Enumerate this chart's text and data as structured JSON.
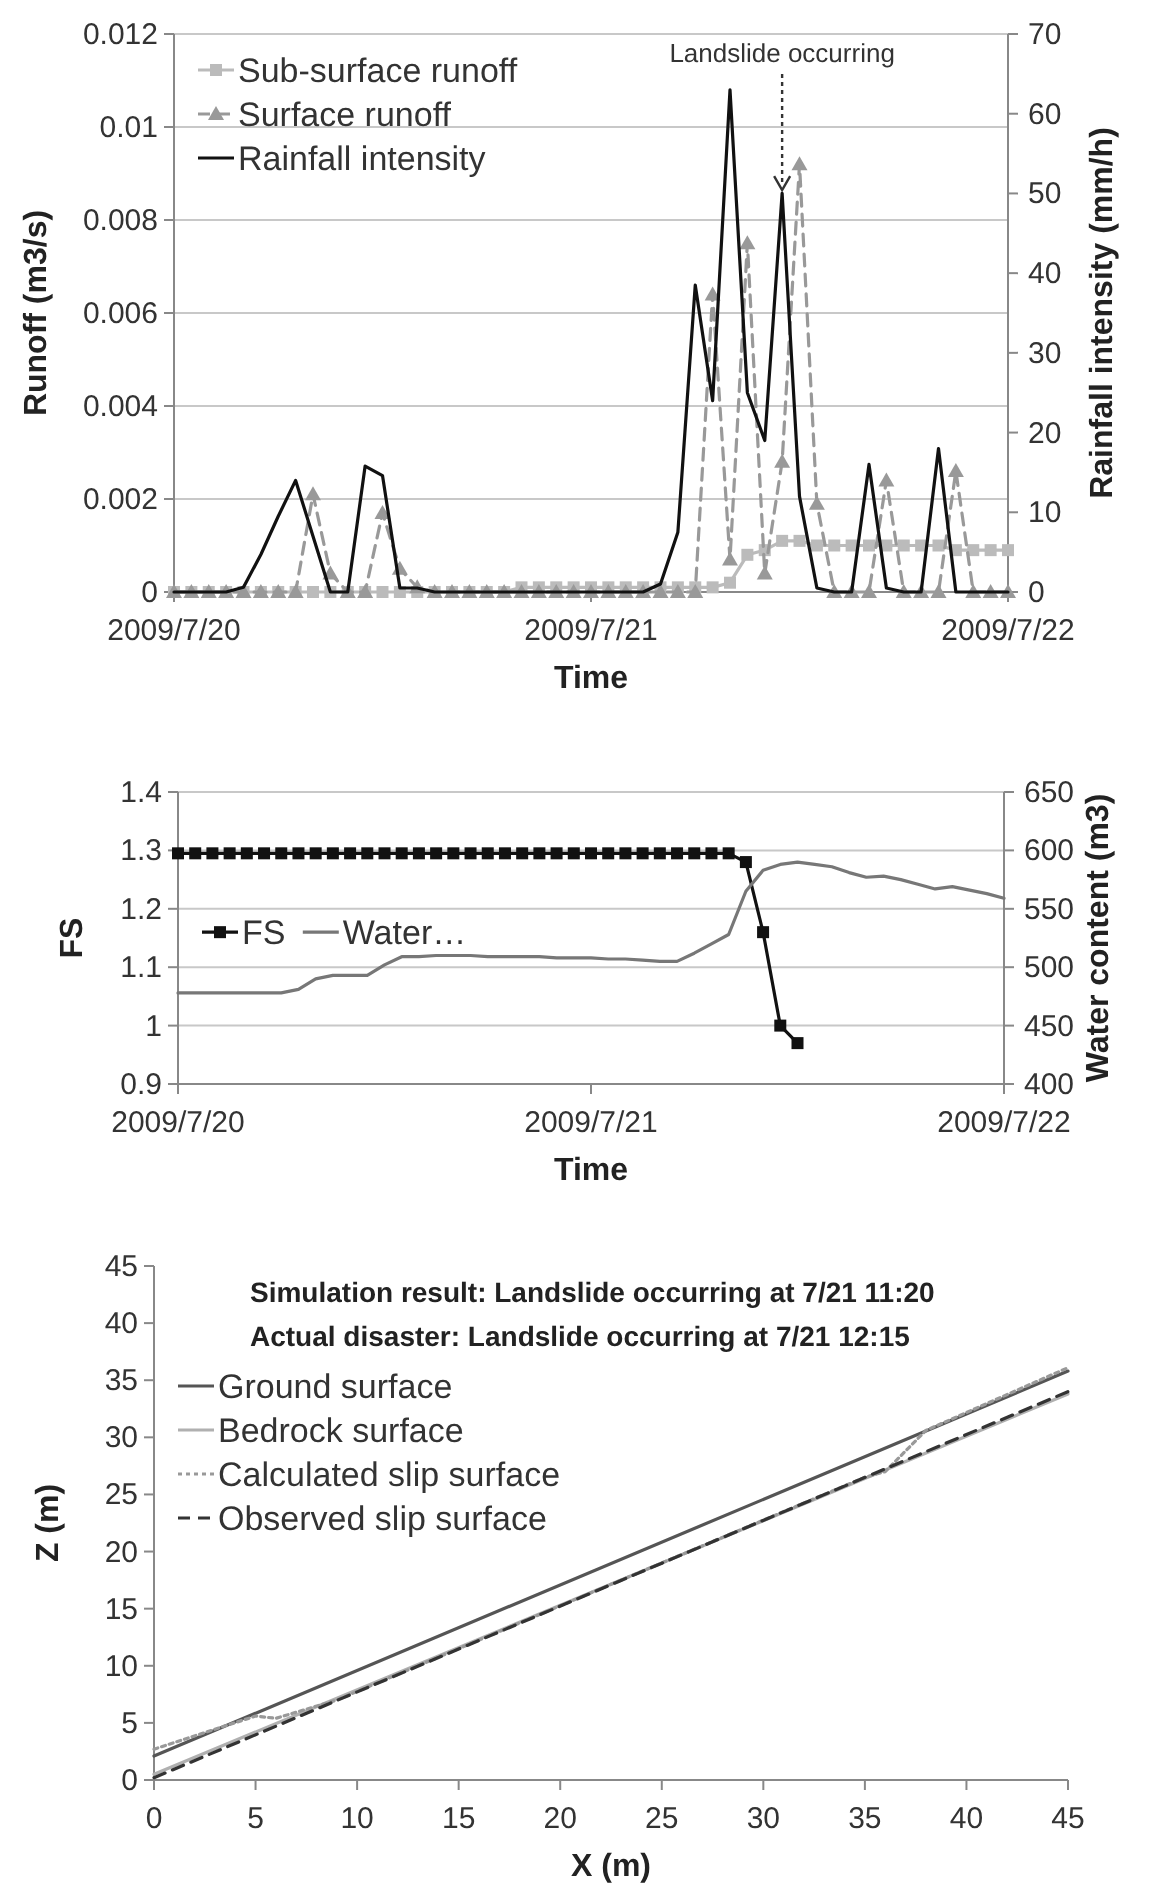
{
  "chart_data": [
    {
      "type": "line",
      "xlabel": "Time",
      "ylabel": "Runoff (m3/s)",
      "y2label": "Rainfall intensity (mm/h)",
      "x": [
        "2009-07-20T00:00",
        "2009-07-20T01:00",
        "2009-07-20T02:00",
        "2009-07-20T03:00",
        "2009-07-20T04:00",
        "2009-07-20T05:00",
        "2009-07-20T06:00",
        "2009-07-20T07:00",
        "2009-07-20T08:00",
        "2009-07-20T09:00",
        "2009-07-20T10:00",
        "2009-07-20T11:00",
        "2009-07-20T12:00",
        "2009-07-20T13:00",
        "2009-07-20T14:00",
        "2009-07-20T15:00",
        "2009-07-20T16:00",
        "2009-07-20T17:00",
        "2009-07-20T18:00",
        "2009-07-20T19:00",
        "2009-07-20T20:00",
        "2009-07-20T21:00",
        "2009-07-20T22:00",
        "2009-07-20T23:00",
        "2009-07-21T00:00",
        "2009-07-21T01:00",
        "2009-07-21T02:00",
        "2009-07-21T03:00",
        "2009-07-21T04:00",
        "2009-07-21T05:00",
        "2009-07-21T06:00",
        "2009-07-21T07:00",
        "2009-07-21T08:00",
        "2009-07-21T09:00",
        "2009-07-21T10:00",
        "2009-07-21T11:00",
        "2009-07-21T12:00",
        "2009-07-21T13:00",
        "2009-07-21T14:00",
        "2009-07-21T15:00",
        "2009-07-21T16:00",
        "2009-07-21T17:00",
        "2009-07-21T18:00",
        "2009-07-21T19:00",
        "2009-07-21T20:00",
        "2009-07-21T21:00",
        "2009-07-21T22:00",
        "2009-07-21T23:00",
        "2009-07-22T00:00"
      ],
      "series": [
        {
          "name": "Sub-surface runoff",
          "color": "#bbbbbb",
          "marker": "square",
          "line_style": "solid",
          "values": [
            0,
            0,
            0,
            0,
            0,
            0,
            0,
            0,
            0,
            0,
            0,
            0,
            0,
            0,
            0,
            0,
            0,
            0,
            0,
            0,
            0.0001,
            0.0001,
            0.0001,
            0.0001,
            0.0001,
            0.0001,
            0.0001,
            0.0001,
            0.0001,
            0.0001,
            0.0001,
            0.0001,
            0.0002,
            0.0008,
            0.0009,
            0.0011,
            0.0011,
            0.001,
            0.001,
            0.001,
            0.001,
            0.001,
            0.001,
            0.001,
            0.001,
            0.0009,
            0.0009,
            0.0009,
            0.0009
          ]
        },
        {
          "name": "Surface runoff",
          "color": "#999999",
          "marker": "triangle",
          "line_style": "dashed",
          "values": [
            0,
            0,
            0,
            0,
            0,
            0,
            0,
            0,
            0.0021,
            0.0004,
            0,
            0,
            0.0017,
            0.0005,
            0.0001,
            0,
            0,
            0,
            0,
            0,
            0,
            0,
            0,
            0,
            0,
            0,
            0,
            0,
            0,
            0,
            0,
            0.0064,
            0.0007,
            0.0075,
            0.0004,
            0.0028,
            0.0092,
            0.0019,
            0,
            0,
            0,
            0.0024,
            0,
            0,
            0,
            0.0026,
            0,
            0,
            0
          ]
        },
        {
          "name": "Rainfall intensity",
          "color": "#111111",
          "marker": "none",
          "line_style": "solid",
          "axis": "y2",
          "values": [
            0,
            0,
            0,
            0,
            0.6,
            4.7,
            9.5,
            14,
            7,
            0,
            0,
            15.8,
            14.6,
            0.5,
            0.5,
            0,
            0,
            0,
            0,
            0,
            0,
            0,
            0,
            0,
            0,
            0,
            0,
            0,
            1,
            7.5,
            38.5,
            24,
            63,
            25,
            19,
            50,
            12,
            0.5,
            0,
            0,
            16,
            0.5,
            0,
            0,
            18,
            0,
            0,
            0,
            0
          ]
        }
      ],
      "xlim": [
        "2009-07-20",
        "2009-07-22"
      ],
      "xticks": [
        {
          "value": "2009-07-20",
          "label": "2009/7/20"
        },
        {
          "value": "2009-07-21",
          "label": "2009/7/21"
        },
        {
          "value": "2009-07-22",
          "label": "2009/7/22"
        }
      ],
      "ylim": [
        0,
        0.012
      ],
      "yticks": [
        0,
        0.002,
        0.004,
        0.006,
        0.008,
        0.01,
        0.012
      ],
      "y2lim": [
        0,
        70
      ],
      "y2ticks": [
        0,
        10,
        20,
        30,
        40,
        50,
        60,
        70
      ],
      "grid": "y",
      "legend": "top left",
      "annotations": [
        {
          "text": "Landslide occurring",
          "x": "2009-07-21T11:00",
          "y": 0.0086
        }
      ]
    },
    {
      "type": "line",
      "xlabel": "Time",
      "ylabel": "FS",
      "y2label": "Water content (m3)",
      "x": [
        "2009-07-20T00:00",
        "2009-07-20T01:00",
        "2009-07-20T02:00",
        "2009-07-20T03:00",
        "2009-07-20T04:00",
        "2009-07-20T05:00",
        "2009-07-20T06:00",
        "2009-07-20T07:00",
        "2009-07-20T08:00",
        "2009-07-20T09:00",
        "2009-07-20T10:00",
        "2009-07-20T11:00",
        "2009-07-20T12:00",
        "2009-07-20T13:00",
        "2009-07-20T14:00",
        "2009-07-20T15:00",
        "2009-07-20T16:00",
        "2009-07-20T17:00",
        "2009-07-20T18:00",
        "2009-07-20T19:00",
        "2009-07-20T20:00",
        "2009-07-20T21:00",
        "2009-07-20T22:00",
        "2009-07-20T23:00",
        "2009-07-21T00:00",
        "2009-07-21T01:00",
        "2009-07-21T02:00",
        "2009-07-21T03:00",
        "2009-07-21T04:00",
        "2009-07-21T05:00",
        "2009-07-21T06:00",
        "2009-07-21T07:00",
        "2009-07-21T08:00",
        "2009-07-21T09:00",
        "2009-07-21T10:00",
        "2009-07-21T11:00",
        "2009-07-21T12:00",
        "2009-07-21T13:00",
        "2009-07-21T14:00",
        "2009-07-21T15:00",
        "2009-07-21T16:00",
        "2009-07-21T17:00",
        "2009-07-21T18:00",
        "2009-07-21T19:00",
        "2009-07-21T20:00",
        "2009-07-21T21:00",
        "2009-07-21T22:00",
        "2009-07-21T23:00",
        "2009-07-22T00:00"
      ],
      "series": [
        {
          "name": "FS",
          "color": "#111111",
          "marker": "square",
          "line_style": "solid",
          "values": [
            1.295,
            1.295,
            1.295,
            1.295,
            1.295,
            1.295,
            1.295,
            1.295,
            1.295,
            1.295,
            1.295,
            1.295,
            1.295,
            1.295,
            1.295,
            1.295,
            1.295,
            1.295,
            1.295,
            1.295,
            1.295,
            1.295,
            1.295,
            1.295,
            1.295,
            1.295,
            1.295,
            1.295,
            1.295,
            1.295,
            1.295,
            1.295,
            1.295,
            1.28,
            1.16,
            1.0,
            0.97,
            null,
            null,
            null,
            null,
            null,
            null,
            null,
            null,
            null,
            null,
            null,
            null
          ]
        },
        {
          "name": "Water…",
          "color": "#777777",
          "marker": "none",
          "line_style": "solid",
          "axis": "y2",
          "values": [
            478,
            478,
            478,
            478,
            478,
            478,
            478,
            481,
            490,
            493,
            493,
            493,
            502,
            509,
            509,
            510,
            510,
            510,
            509,
            509,
            509,
            509,
            508,
            508,
            508,
            507,
            507,
            506,
            505,
            505,
            512,
            520,
            528,
            565,
            583,
            588,
            590,
            588,
            586,
            581,
            577,
            578,
            575,
            571,
            567,
            569,
            566,
            563,
            559
          ]
        }
      ],
      "xlim": [
        "2009-07-20",
        "2009-07-22"
      ],
      "xticks": [
        {
          "value": "2009-07-20",
          "label": "2009/7/20"
        },
        {
          "value": "2009-07-21",
          "label": "2009/7/21"
        },
        {
          "value": "2009-07-22",
          "label": "2009/7/22"
        }
      ],
      "ylim": [
        0.9,
        1.4
      ],
      "yticks": [
        0.9,
        1,
        1.1,
        1.2,
        1.3,
        1.4
      ],
      "y2lim": [
        400,
        650
      ],
      "y2ticks": [
        400,
        450,
        500,
        550,
        600,
        650
      ],
      "grid": "y",
      "legend": "left"
    },
    {
      "type": "line",
      "xlabel": "X (m)",
      "ylabel": "Z (m)",
      "series": [
        {
          "name": "Ground surface",
          "color": "#555555",
          "line_style": "solid",
          "x": [
            0,
            45
          ],
          "values": [
            2.1,
            35.8
          ]
        },
        {
          "name": "Bedrock surface",
          "color": "#b0b0b0",
          "line_style": "solid",
          "x": [
            0,
            45
          ],
          "values": [
            0.5,
            33.8
          ]
        },
        {
          "name": "Calculated slip surface",
          "color": "#999999",
          "line_style": "dotted",
          "x": [
            0,
            5,
            6,
            9,
            35,
            36,
            38,
            45
          ],
          "values": [
            2.7,
            5.6,
            5.4,
            7,
            26.5,
            27,
            30.6,
            36.1
          ]
        },
        {
          "name": "Observed slip surface",
          "color": "#333333",
          "line_style": "dashed",
          "x": [
            0,
            45
          ],
          "values": [
            0.2,
            34
          ]
        }
      ],
      "xlim": [
        0,
        45
      ],
      "xticks": [
        0,
        5,
        10,
        15,
        20,
        25,
        30,
        35,
        40,
        45
      ],
      "ylim": [
        0,
        45
      ],
      "yticks": [
        0,
        5,
        10,
        15,
        20,
        25,
        30,
        35,
        40,
        45
      ],
      "grid": false,
      "legend": "top left",
      "annotations": [
        "Simulation result: Landslide occurring at 7/21 11:20",
        "Actual disaster: Landslide occurring at 7/21 12:15"
      ]
    }
  ]
}
